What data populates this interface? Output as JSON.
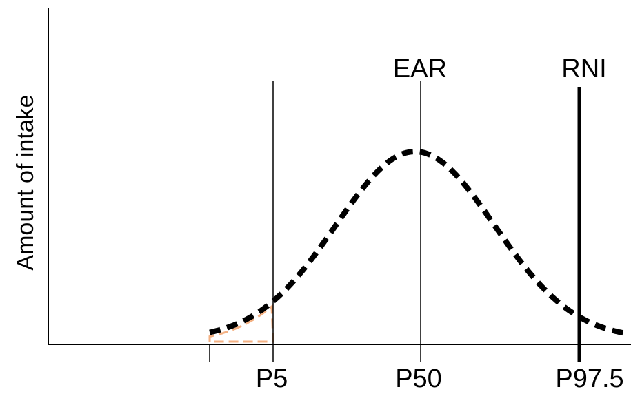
{
  "chart_data": {
    "type": "line",
    "title": "",
    "xlabel": "",
    "ylabel": "Amount of intake",
    "grid": false,
    "legend": "none",
    "series": [
      {
        "style": "dashed",
        "color": "#000000",
        "curve": "bell-shaped distribution"
      }
    ],
    "tick_labels": [
      "P5",
      "P50",
      "P97.5"
    ],
    "reference_lines": [
      {
        "label": "EAR",
        "at": "P50",
        "weight": "thin"
      },
      {
        "label": "RNI",
        "at": "P97.5",
        "weight": "bold"
      }
    ],
    "shaded_region": {
      "from": "left tail",
      "to": "P5",
      "color": "#f4b183"
    }
  }
}
